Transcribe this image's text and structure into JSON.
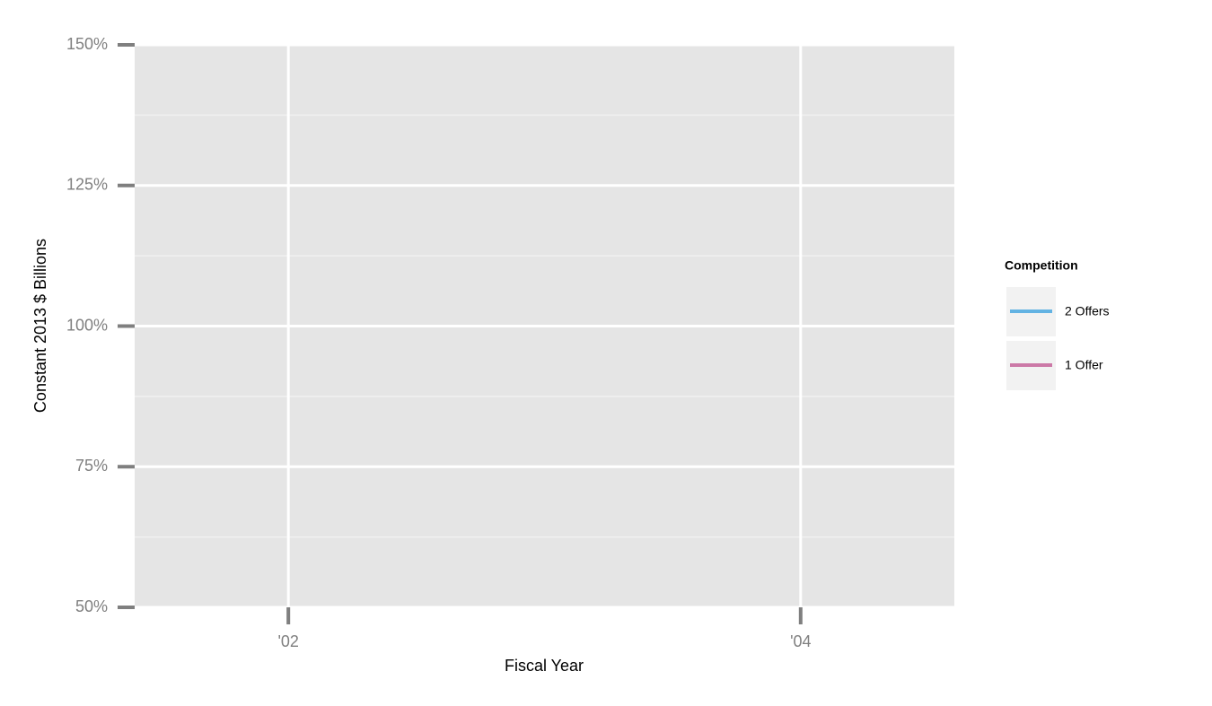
{
  "chart_data": {
    "type": "line",
    "x_label": "Fiscal Year",
    "y_label": "Constant 2013 $ Billions",
    "legend_title": "Competition",
    "x": [],
    "series": [
      {
        "name": "2 Offers",
        "color": "#63b3e3",
        "values": []
      },
      {
        "name": "1 Offer",
        "color": "#cc79a7",
        "values": []
      }
    ],
    "xlim": [
      2001.4,
      2004.6
    ],
    "xticks": [
      {
        "value": 2002,
        "label": "'02"
      },
      {
        "value": 2004,
        "label": "'04"
      }
    ],
    "ylim": [
      50,
      150
    ],
    "yticks": [
      {
        "value": 50,
        "label": "50%"
      },
      {
        "value": 75,
        "label": "75%"
      },
      {
        "value": 100,
        "label": "100%"
      },
      {
        "value": 125,
        "label": "125%"
      },
      {
        "value": 150,
        "label": "150%"
      }
    ],
    "grid": true,
    "legend": "right"
  }
}
